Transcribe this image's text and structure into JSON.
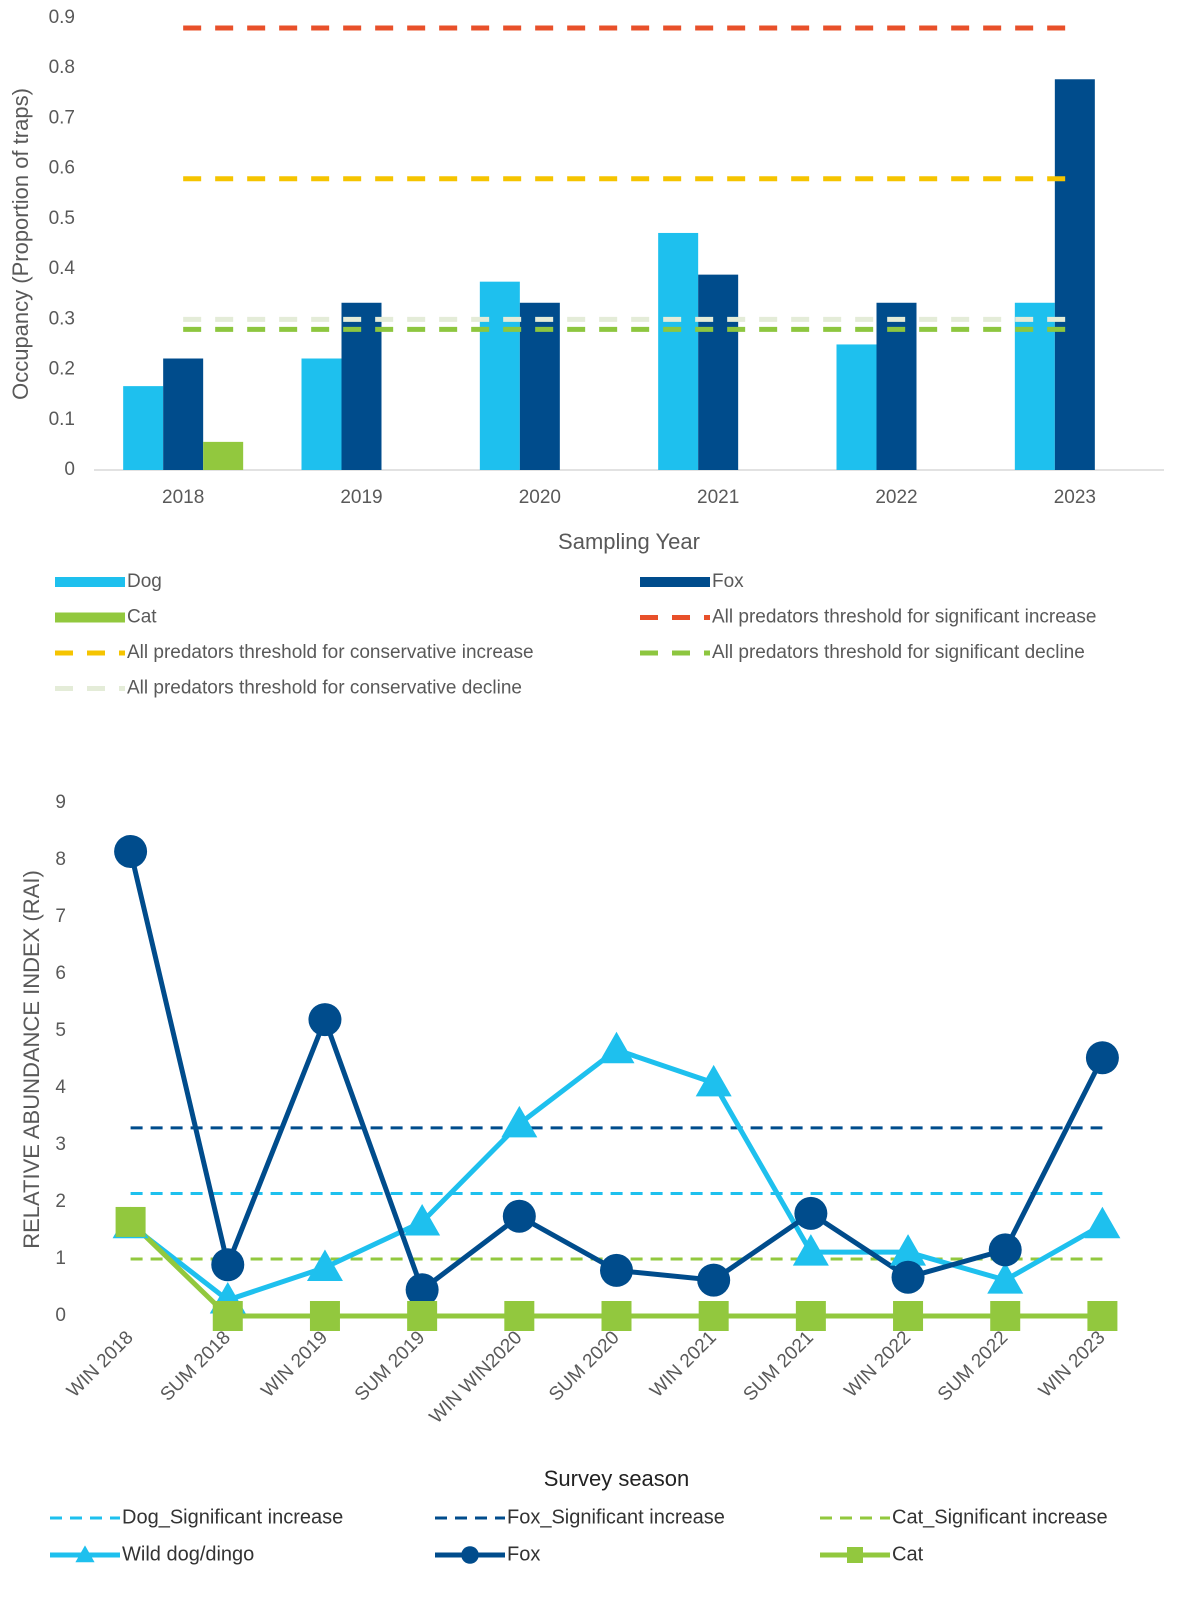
{
  "chart_data": [
    {
      "type": "bar",
      "x_label": "Sampling Year",
      "y_label": "Occupancy (Proportion of traps)",
      "categories": [
        "2018",
        "2019",
        "2020",
        "2021",
        "2022",
        "2023"
      ],
      "ylim": [
        0,
        0.9
      ],
      "yticks": [
        0,
        0.1,
        0.2,
        0.3,
        0.4,
        0.5,
        0.6,
        0.7,
        0.8,
        0.9
      ],
      "series": [
        {
          "name": "Dog",
          "color": "#1ec0ee",
          "style": "bar",
          "values": [
            0.167,
            0.222,
            0.375,
            0.472,
            0.25,
            0.333
          ]
        },
        {
          "name": "Fox",
          "color": "#004c8c",
          "style": "bar",
          "values": [
            0.222,
            0.333,
            0.333,
            0.389,
            0.333,
            0.778
          ]
        },
        {
          "name": "Cat",
          "color": "#92c83e",
          "style": "bar",
          "values": [
            0.056,
            0,
            0,
            0,
            0,
            0
          ]
        },
        {
          "name": "All predators threshold for significant increase",
          "color": "#e8502a",
          "style": "dashed",
          "values": [
            0.88,
            0.88,
            0.88,
            0.88,
            0.88,
            0.88
          ]
        },
        {
          "name": "All predators threshold for conservative increase",
          "color": "#f5c400",
          "style": "dashed",
          "values": [
            0.58,
            0.58,
            0.58,
            0.58,
            0.58,
            0.58
          ]
        },
        {
          "name": "All predators threshold for significant decline",
          "color": "#8dc63f",
          "style": "dashed",
          "values": [
            0.28,
            0.28,
            0.28,
            0.28,
            0.28,
            0.28
          ]
        },
        {
          "name": "All predators threshold for conservative decline",
          "color": "#e4ecd8",
          "style": "dashed",
          "values": [
            0.3,
            0.3,
            0.3,
            0.3,
            0.3,
            0.3
          ]
        }
      ]
    },
    {
      "type": "line",
      "x_label": "Survey season",
      "y_label": "RELATIVE ABUNDANCE INDEX (RAI)",
      "categories": [
        "WIN 2018",
        "SUM 2018",
        "WIN 2019",
        "SUM 2019",
        "WIN WIN2020",
        "SUM 2020",
        "WIN 2021",
        "SUM 2021",
        "WIN 2022",
        "SUM 2022",
        "WIN 2023"
      ],
      "ylim": [
        0,
        9
      ],
      "yticks": [
        0,
        1,
        2,
        3,
        4,
        5,
        6,
        7,
        8,
        9
      ],
      "series": [
        {
          "name": "Dog_Significant increase",
          "color": "#1ec0ee",
          "style": "dashed",
          "values": [
            2.15,
            2.15,
            2.15,
            2.15,
            2.15,
            2.15,
            2.15,
            2.15,
            2.15,
            2.15,
            2.15
          ]
        },
        {
          "name": "Fox_Significant increase",
          "color": "#004c8c",
          "style": "dashed",
          "values": [
            3.3,
            3.3,
            3.3,
            3.3,
            3.3,
            3.3,
            3.3,
            3.3,
            3.3,
            3.3,
            3.3
          ]
        },
        {
          "name": "Cat_Significant increase",
          "color": "#92c83e",
          "style": "dashed",
          "values": [
            1,
            1,
            1,
            1,
            1,
            1,
            1,
            1,
            1,
            1,
            1
          ]
        },
        {
          "name": "Wild dog/dingo",
          "color": "#1ec0ee",
          "style": "solid",
          "marker": "triangle",
          "values": [
            1.6,
            0.28,
            0.85,
            1.65,
            3.37,
            4.67,
            4.09,
            1.12,
            1.12,
            0.63,
            1.6
          ]
        },
        {
          "name": "Fox",
          "color": "#004c8c",
          "style": "solid",
          "marker": "circle",
          "values": [
            8.15,
            0.9,
            5.2,
            0.46,
            1.75,
            0.8,
            0.63,
            1.8,
            0.68,
            1.16,
            4.53
          ]
        },
        {
          "name": "Cat",
          "color": "#92c83e",
          "style": "solid",
          "marker": "square",
          "values": [
            1.65,
            0,
            0,
            0,
            0,
            0,
            0,
            0,
            0,
            0,
            0
          ]
        }
      ]
    }
  ]
}
